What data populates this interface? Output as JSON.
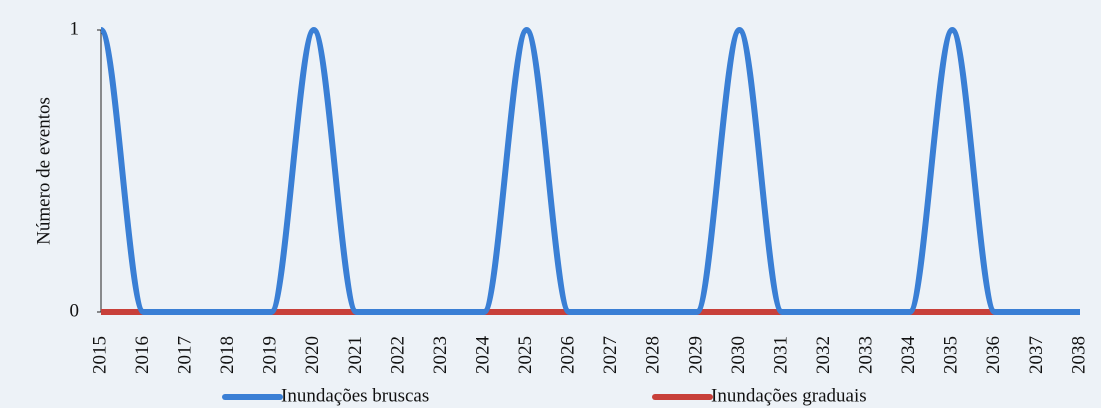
{
  "chart_data": {
    "type": "line",
    "y_label": "Número de eventos",
    "categories": [
      "2015",
      "2016",
      "2017",
      "2018",
      "2019",
      "2020",
      "2021",
      "2022",
      "2023",
      "2024",
      "2025",
      "2026",
      "2027",
      "2028",
      "2029",
      "2030",
      "2031",
      "2032",
      "2033",
      "2034",
      "2035",
      "2036",
      "2037",
      "2038"
    ],
    "series": [
      {
        "name": "Inundações bruscas",
        "color": "#3a7fd5",
        "values": [
          1,
          0,
          0,
          0,
          0,
          1,
          0,
          0,
          0,
          0,
          1,
          0,
          0,
          0,
          0,
          1,
          0,
          0,
          0,
          0,
          1,
          0,
          0,
          0
        ]
      },
      {
        "name": "Inundações graduais",
        "color": "#c8403a",
        "values": [
          0,
          0,
          0,
          0,
          0,
          0,
          0,
          0,
          0,
          0,
          0,
          0,
          0,
          0,
          0,
          0,
          0,
          0,
          0,
          0,
          0,
          0,
          0,
          0
        ]
      }
    ],
    "ylim": [
      0,
      1
    ],
    "yticks": [
      0,
      1
    ],
    "smooth": true,
    "legend": "bottom"
  }
}
